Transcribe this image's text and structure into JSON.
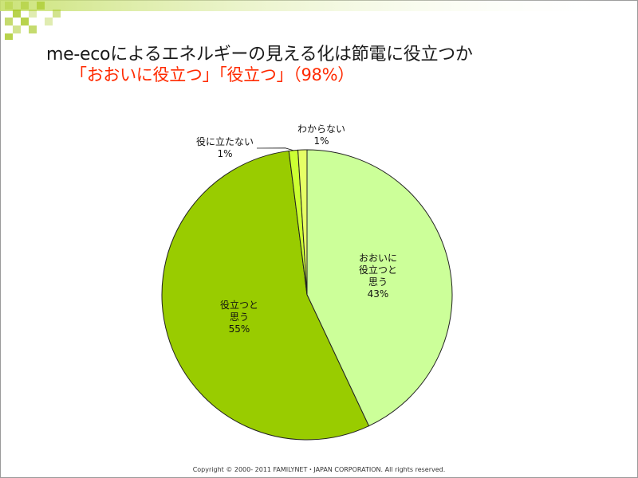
{
  "slide": {
    "title_line1": "me-ecoによるエネルギーの見える化は節電に役立つか",
    "title_line2": "「おおいに役立つ」「役立つ」（98%）",
    "footer": "Copyright © 2000- 2011 FAMILYNET・JAPAN CORPORATION. All rights reserved.",
    "accent_color": "#ff2a00",
    "deco_color": "#a6c820"
  },
  "chart_data": {
    "type": "pie",
    "slices": [
      {
        "label_lines": [
          "おおいに",
          "役立つと",
          "思う"
        ],
        "value": 43,
        "value_label": "43%",
        "color": "#ccff99"
      },
      {
        "label_lines": [
          "役立つと",
          "思う"
        ],
        "value": 55,
        "value_label": "55%",
        "color": "#99cc00"
      },
      {
        "label_lines": [
          "役に立たない"
        ],
        "value": 1,
        "value_label": "1%",
        "color": "#ccff33"
      },
      {
        "label_lines": [
          "わからない"
        ],
        "value": 1,
        "value_label": "1%",
        "color": "#e6ff66"
      }
    ]
  }
}
